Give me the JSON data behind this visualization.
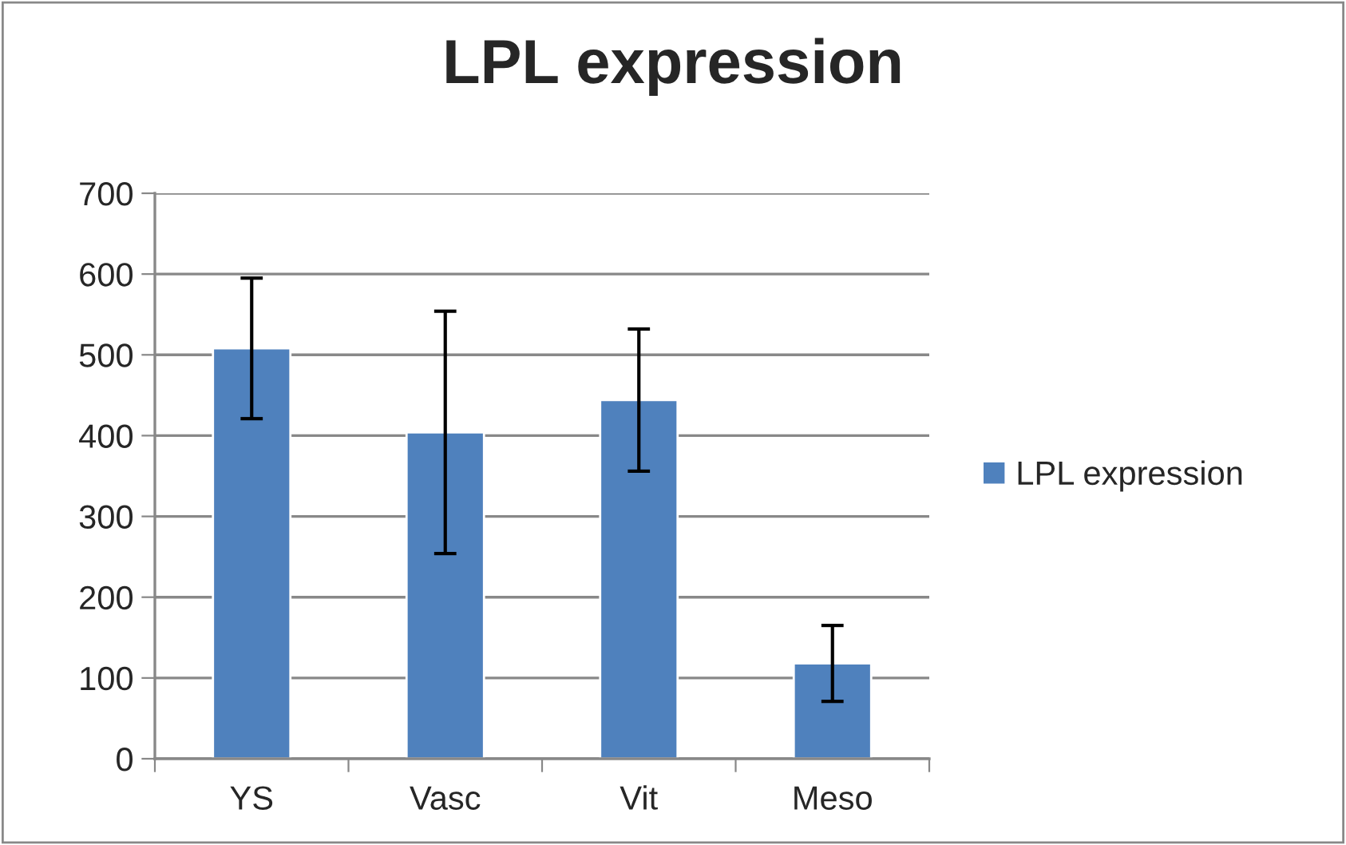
{
  "chart_data": {
    "type": "bar",
    "title": "LPL expression",
    "categories": [
      "YS",
      "Vasc",
      "Vit",
      "Meso"
    ],
    "series": [
      {
        "name": "LPL expression",
        "color": "#4f81bd",
        "values": [
          508,
          404,
          444,
          118
        ],
        "errors": [
          87,
          150,
          88,
          47
        ]
      }
    ],
    "ylim": [
      0,
      700
    ],
    "yticks": [
      0,
      100,
      200,
      300,
      400,
      500,
      600,
      700
    ],
    "grid": "y",
    "legend": "right"
  }
}
